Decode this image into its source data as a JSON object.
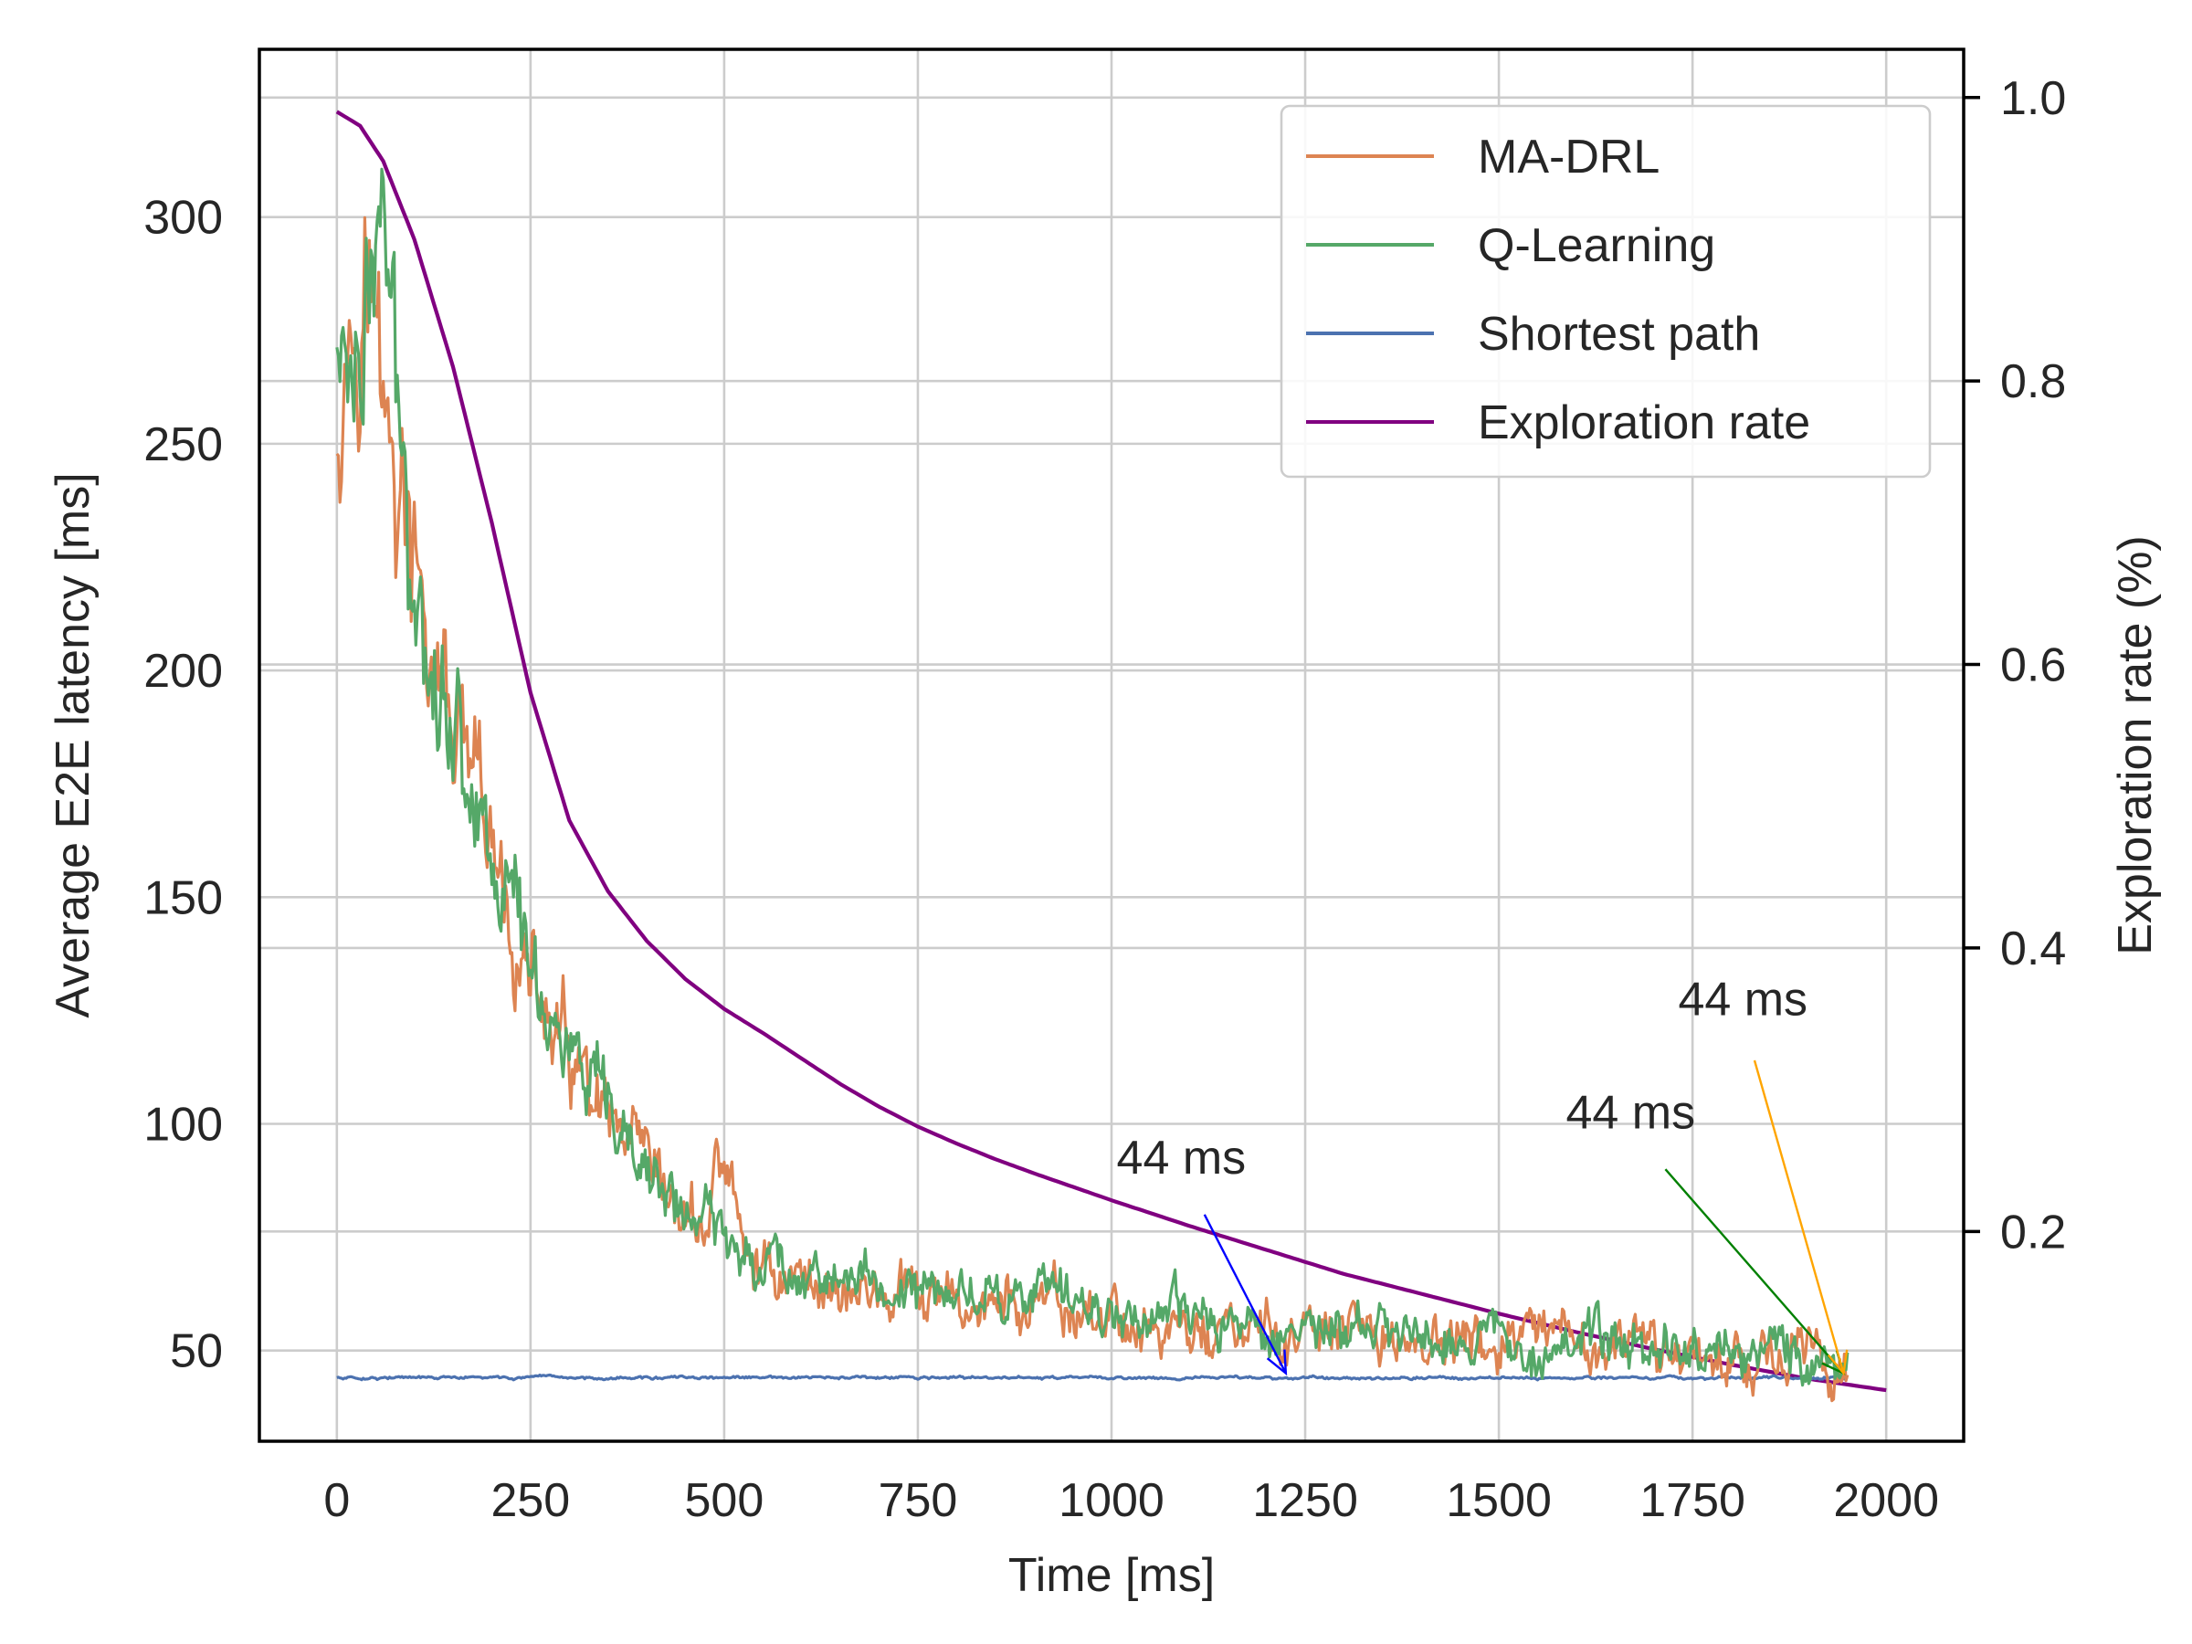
{
  "chart_data": {
    "type": "line",
    "x_axis": {
      "label": "Time [ms]",
      "range": [
        -100,
        2100
      ],
      "ticks": [
        0,
        250,
        500,
        750,
        1000,
        1250,
        1500,
        1750,
        2000
      ],
      "tick_labels": [
        "0",
        "250",
        "500",
        "750",
        "1000",
        "1250",
        "1500",
        "1750",
        "2000"
      ]
    },
    "y_axis_left": {
      "label": "Average E2E latency [ms]",
      "range": [
        30,
        337
      ],
      "ticks": [
        50,
        100,
        150,
        200,
        250,
        300
      ],
      "tick_labels": [
        "50",
        "100",
        "150",
        "200",
        "250",
        "300"
      ]
    },
    "y_axis_right": {
      "label": "Exploration rate (%)",
      "range": [
        0.052,
        1.034
      ],
      "ticks": [
        0.2,
        0.4,
        0.6,
        0.8,
        1.0
      ],
      "tick_labels": [
        "0.2",
        "0.4",
        "0.6",
        "0.8",
        "1.0"
      ]
    },
    "grid": true,
    "legend": {
      "placement": "top-right",
      "entries": [
        "MA-DRL",
        "Q-Learning",
        "Shortest path",
        "Exploration rate"
      ]
    },
    "series": [
      {
        "name": "MA-DRL",
        "color": "#dd8452",
        "axis": "left",
        "x": [
          0,
          20,
          40,
          60,
          80,
          100,
          125,
          150,
          175,
          200,
          225,
          250,
          275,
          300,
          325,
          350,
          375,
          400,
          425,
          450,
          475,
          500,
          525,
          550,
          575,
          600,
          650,
          700,
          750,
          800,
          850,
          900,
          950,
          1000,
          1050,
          1100,
          1150,
          1200,
          1250,
          1300,
          1350,
          1400,
          1450,
          1500,
          1550,
          1600,
          1650,
          1700,
          1750,
          1800,
          1850,
          1900,
          1950
        ],
        "values": [
          262,
          283,
          292,
          255,
          240,
          216,
          200,
          186,
          170,
          156,
          143,
          130,
          121,
          113,
          104,
          97,
          92,
          87,
          82,
          79,
          77,
          95,
          70,
          69,
          67,
          66,
          64,
          62,
          61,
          60,
          60,
          59,
          58,
          57,
          55,
          54,
          54,
          53,
          53,
          53,
          53,
          52,
          51,
          51,
          51,
          51,
          50,
          50,
          50,
          49,
          49,
          48,
          48
        ],
        "noise": 8
      },
      {
        "name": "Q-Learning",
        "color": "#55a868",
        "axis": "left",
        "x": [
          0,
          20,
          40,
          60,
          80,
          100,
          125,
          150,
          175,
          200,
          225,
          250,
          275,
          300,
          325,
          350,
          375,
          400,
          425,
          450,
          475,
          500,
          525,
          550,
          575,
          600,
          650,
          700,
          750,
          800,
          850,
          900,
          950,
          1000,
          1050,
          1100,
          1150,
          1200,
          1250,
          1300,
          1350,
          1400,
          1450,
          1500,
          1550,
          1600,
          1650,
          1700,
          1750,
          1800,
          1850,
          1900,
          1950
        ],
        "values": [
          268,
          272,
          280,
          300,
          250,
          225,
          205,
          190,
          175,
          162,
          150,
          138,
          125,
          116,
          107,
          99,
          93,
          89,
          85,
          80,
          78,
          75,
          73,
          71,
          69,
          68,
          66,
          64,
          63,
          63,
          63,
          62,
          61,
          59,
          58,
          57,
          56,
          55,
          55,
          54,
          54,
          54,
          53,
          53,
          52,
          52,
          52,
          51,
          51,
          50,
          50,
          49,
          48
        ],
        "noise": 7
      },
      {
        "name": "Shortest path",
        "color": "#4c72b0",
        "axis": "left",
        "x": [
          0,
          250,
          500,
          750,
          1000,
          1250,
          1500,
          1750,
          1950
        ],
        "values": [
          44,
          44,
          44,
          44,
          44,
          44,
          44,
          44,
          44
        ],
        "noise": 0.4
      },
      {
        "name": "Exploration rate",
        "color": "#800080",
        "axis": "right",
        "x": [
          0,
          30,
          60,
          100,
          150,
          200,
          250,
          300,
          350,
          400,
          450,
          500,
          550,
          600,
          650,
          700,
          750,
          800,
          850,
          900,
          1000,
          1100,
          1200,
          1300,
          1400,
          1500,
          1600,
          1700,
          1800,
          1900,
          2000
        ],
        "values": [
          0.99,
          0.98,
          0.955,
          0.9,
          0.81,
          0.7,
          0.58,
          0.49,
          0.44,
          0.405,
          0.378,
          0.357,
          0.34,
          0.322,
          0.304,
          0.288,
          0.274,
          0.262,
          0.251,
          0.241,
          0.222,
          0.204,
          0.187,
          0.17,
          0.156,
          0.142,
          0.129,
          0.117,
          0.106,
          0.096,
          0.088
        ]
      }
    ],
    "annotations": [
      {
        "text": "44 ms",
        "color": "#0000ff",
        "text_x": 1090,
        "text_y": 89,
        "arrow_from": [
          1120,
          80
        ],
        "arrow_to": [
          1225,
          45
        ]
      },
      {
        "text": "44 ms",
        "color": "#008000",
        "text_x": 1670,
        "text_y": 99,
        "arrow_from": [
          1715,
          90
        ],
        "arrow_to": [
          1945,
          45
        ]
      },
      {
        "text": "44 ms",
        "color": "#ffa500",
        "text_x": 1815,
        "text_y": 124,
        "arrow_from": [
          1830,
          114
        ],
        "arrow_to": [
          1945,
          45
        ]
      }
    ]
  }
}
